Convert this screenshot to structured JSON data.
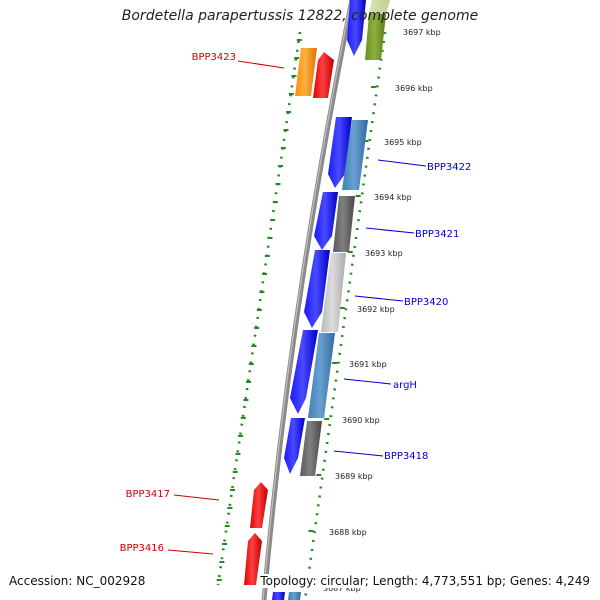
{
  "title": "Bordetella parapertussis 12822, complete genome",
  "footer": {
    "accession": "Accession: NC_002928",
    "summary": "Topology: circular; Length: 4,773,551 bp; Genes: 4,249"
  },
  "colors": {
    "backbone": "#8a8a8a",
    "dotted_ring": "#228b22",
    "forward_gene": "#0000ff",
    "label_blue": "#0000cc",
    "label_red": "#cc0000"
  },
  "scale_labels": [
    "3697 kbp",
    "3696 kbp",
    "3695 kbp",
    "3694 kbp",
    "3693 kbp",
    "3692 kbp",
    "3691 kbp",
    "3690 kbp",
    "3689 kbp",
    "3688 kbp",
    "3687 kbp"
  ],
  "gene_labels": [
    {
      "text": "BPP3423",
      "side": "left",
      "color": "red"
    },
    {
      "text": "BPP3422",
      "side": "right",
      "color": "blue"
    },
    {
      "text": "BPP3421",
      "side": "right",
      "color": "blue"
    },
    {
      "text": "BPP3420",
      "side": "right",
      "color": "blue"
    },
    {
      "text": "argH",
      "side": "right",
      "color": "blue"
    },
    {
      "text": "BPP3418",
      "side": "right",
      "color": "blue"
    },
    {
      "text": "BPP3417",
      "side": "left",
      "color": "red"
    },
    {
      "text": "BPP3416",
      "side": "left",
      "color": "red"
    }
  ]
}
